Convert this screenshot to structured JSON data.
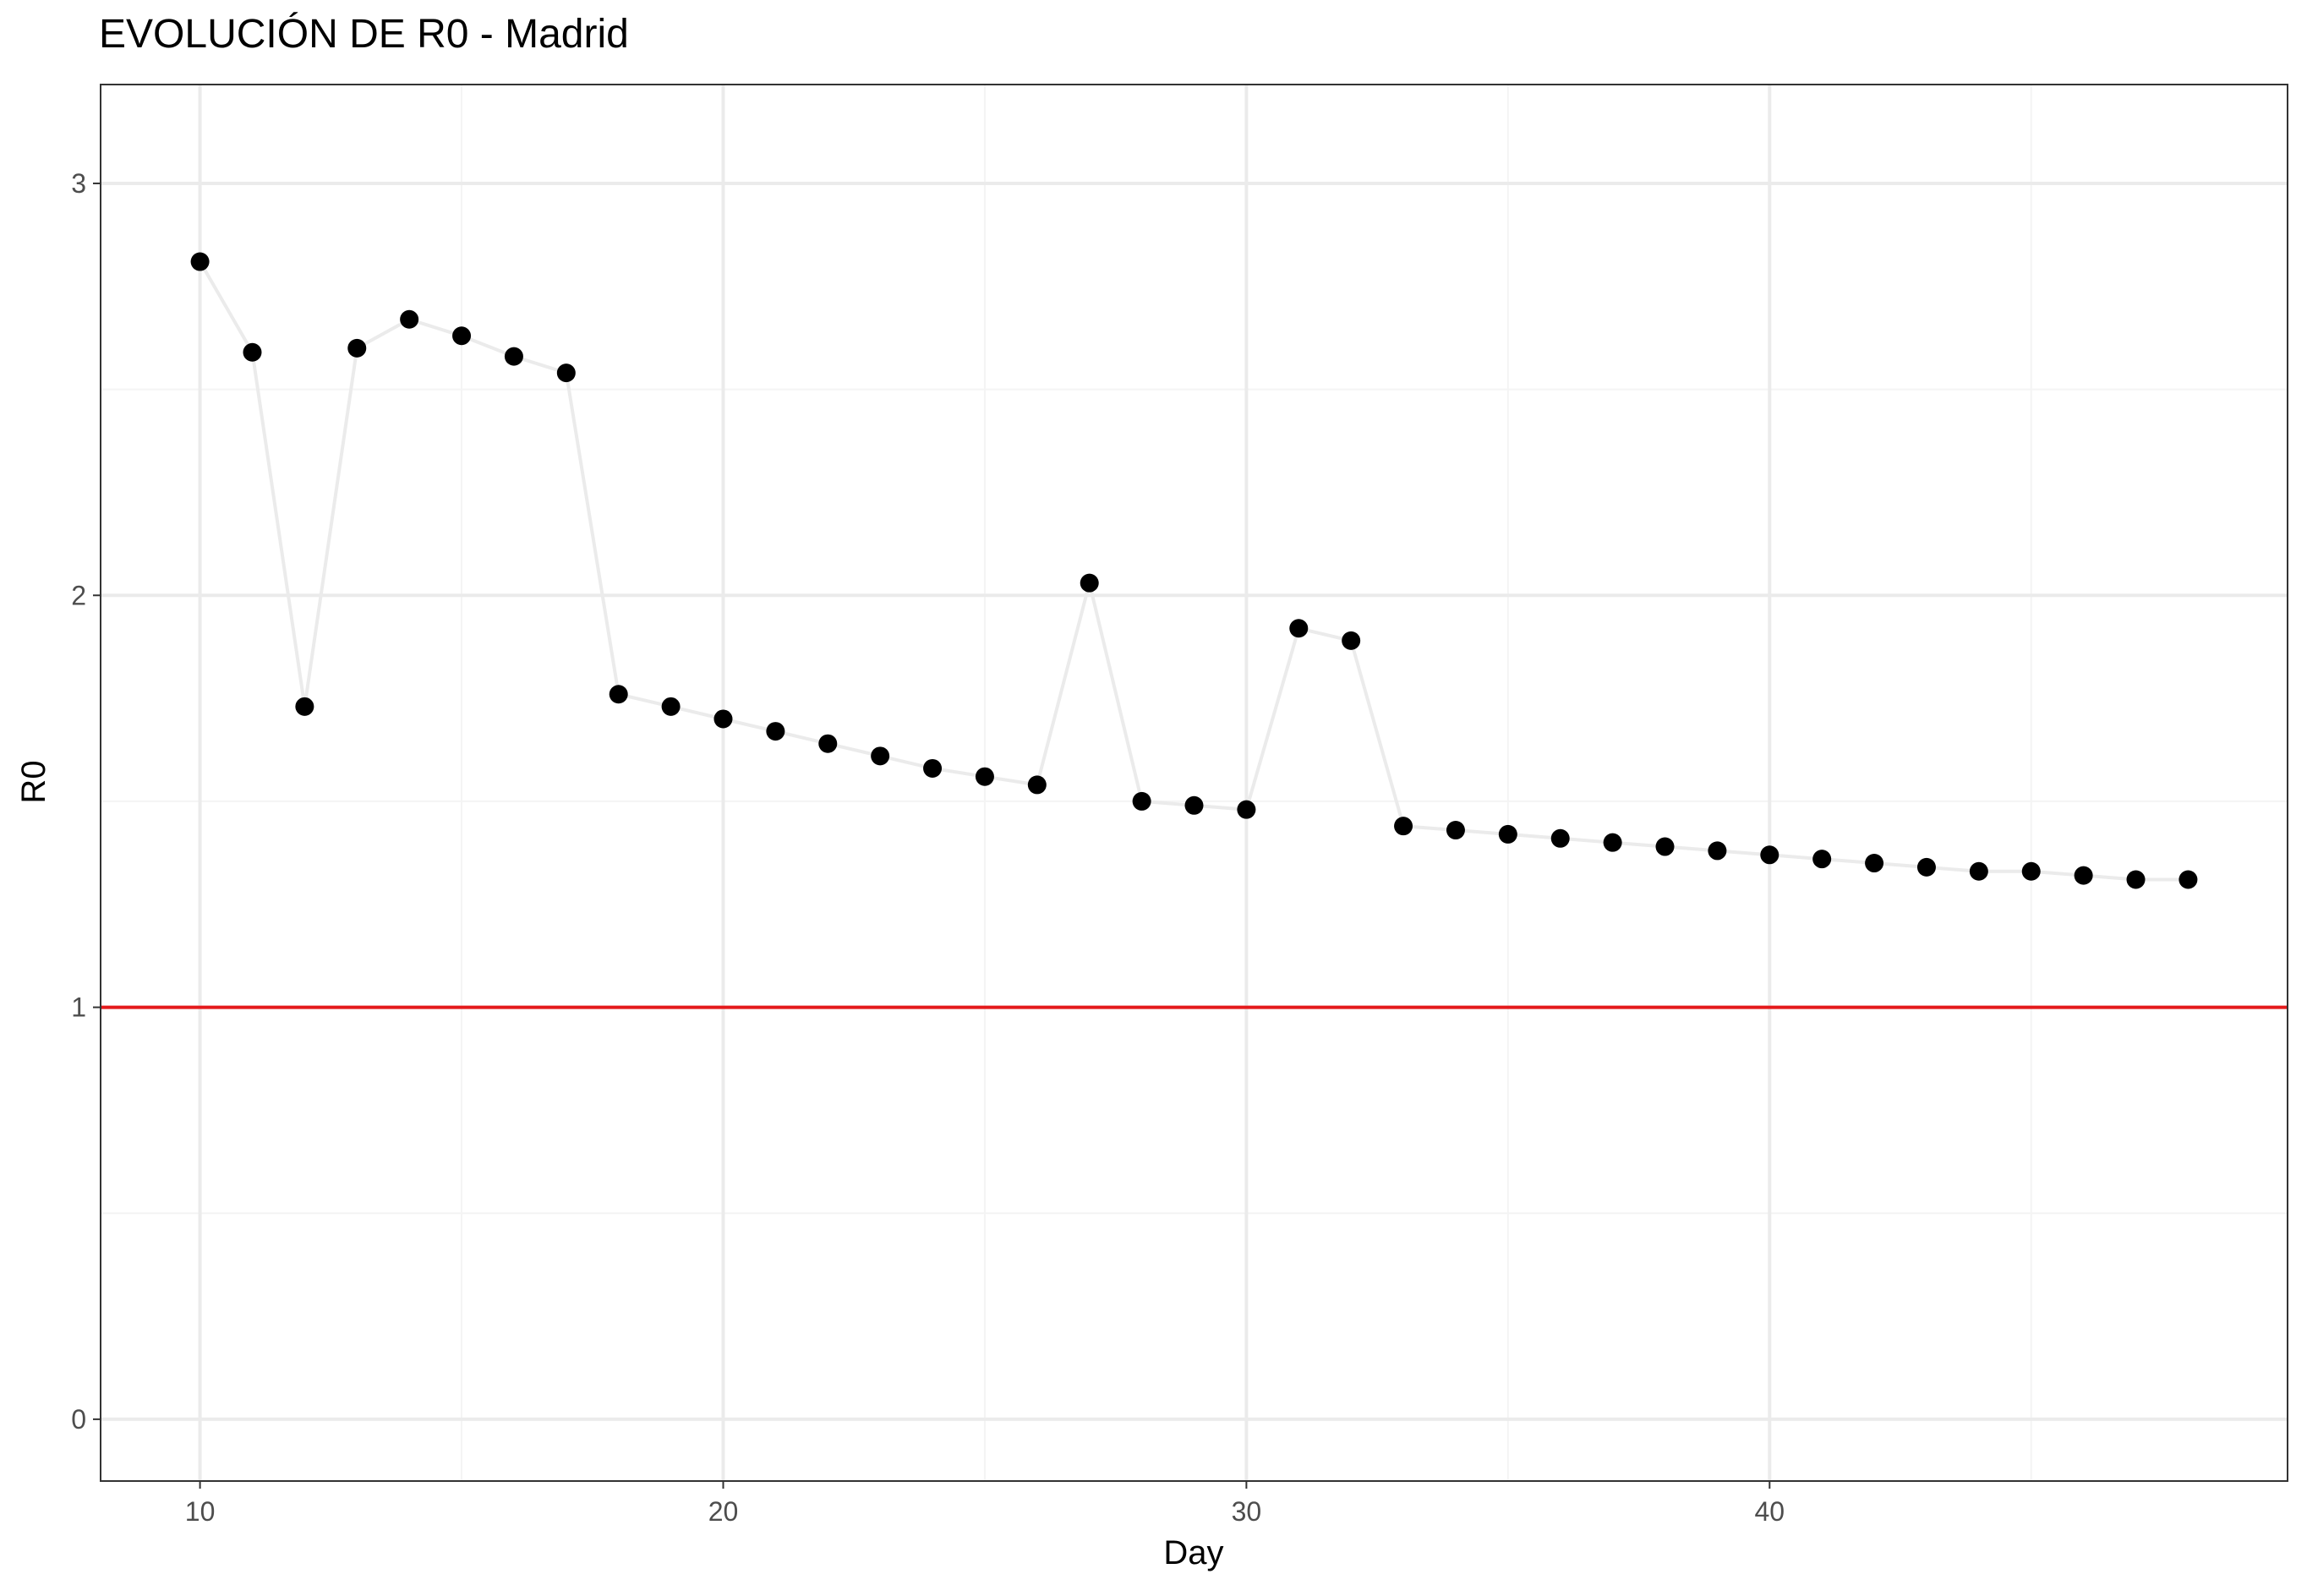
{
  "chart_data": {
    "type": "line",
    "title": "EVOLUCIÓN DE R0 - Madrid",
    "xlabel": "Day",
    "ylabel": "R0",
    "xlim": [
      8.1,
      49.9
    ],
    "ylim": [
      -0.15,
      3.24
    ],
    "xticks": [
      10,
      20,
      30,
      40
    ],
    "yticks": [
      0,
      1,
      2,
      3
    ],
    "minor_xticks": [
      15,
      25,
      35,
      45
    ],
    "minor_yticks": [
      0.5,
      1.5,
      2.5
    ],
    "grid": true,
    "reference_line": {
      "y": 1,
      "color": "#e41a1c"
    },
    "series": [
      {
        "x": [
          10,
          11,
          12,
          13,
          14,
          15,
          16,
          17,
          18,
          19,
          20,
          21,
          22,
          23,
          24,
          25,
          26,
          27,
          28,
          29,
          30,
          31,
          32,
          33,
          34,
          35,
          36,
          37,
          38,
          39,
          40,
          41,
          42,
          43,
          44,
          45,
          46,
          47,
          48
        ],
        "values": [
          2.81,
          2.59,
          1.73,
          2.6,
          2.67,
          2.63,
          2.58,
          2.54,
          1.76,
          1.73,
          1.7,
          1.67,
          1.64,
          1.61,
          1.58,
          1.56,
          1.54,
          2.03,
          1.5,
          1.49,
          1.48,
          1.92,
          1.89,
          1.44,
          1.43,
          1.42,
          1.41,
          1.4,
          1.39,
          1.38,
          1.37,
          1.36,
          1.35,
          1.34,
          1.33,
          1.33,
          1.32,
          1.31,
          1.31
        ]
      }
    ],
    "colors": {
      "points": "#000000",
      "line": "#ebebeb",
      "grid_major": "#ebebeb",
      "grid_minor": "#f4f4f4",
      "panel_border": "#333333",
      "axis_text": "#4d4d4d",
      "title_text": "#000000"
    }
  }
}
